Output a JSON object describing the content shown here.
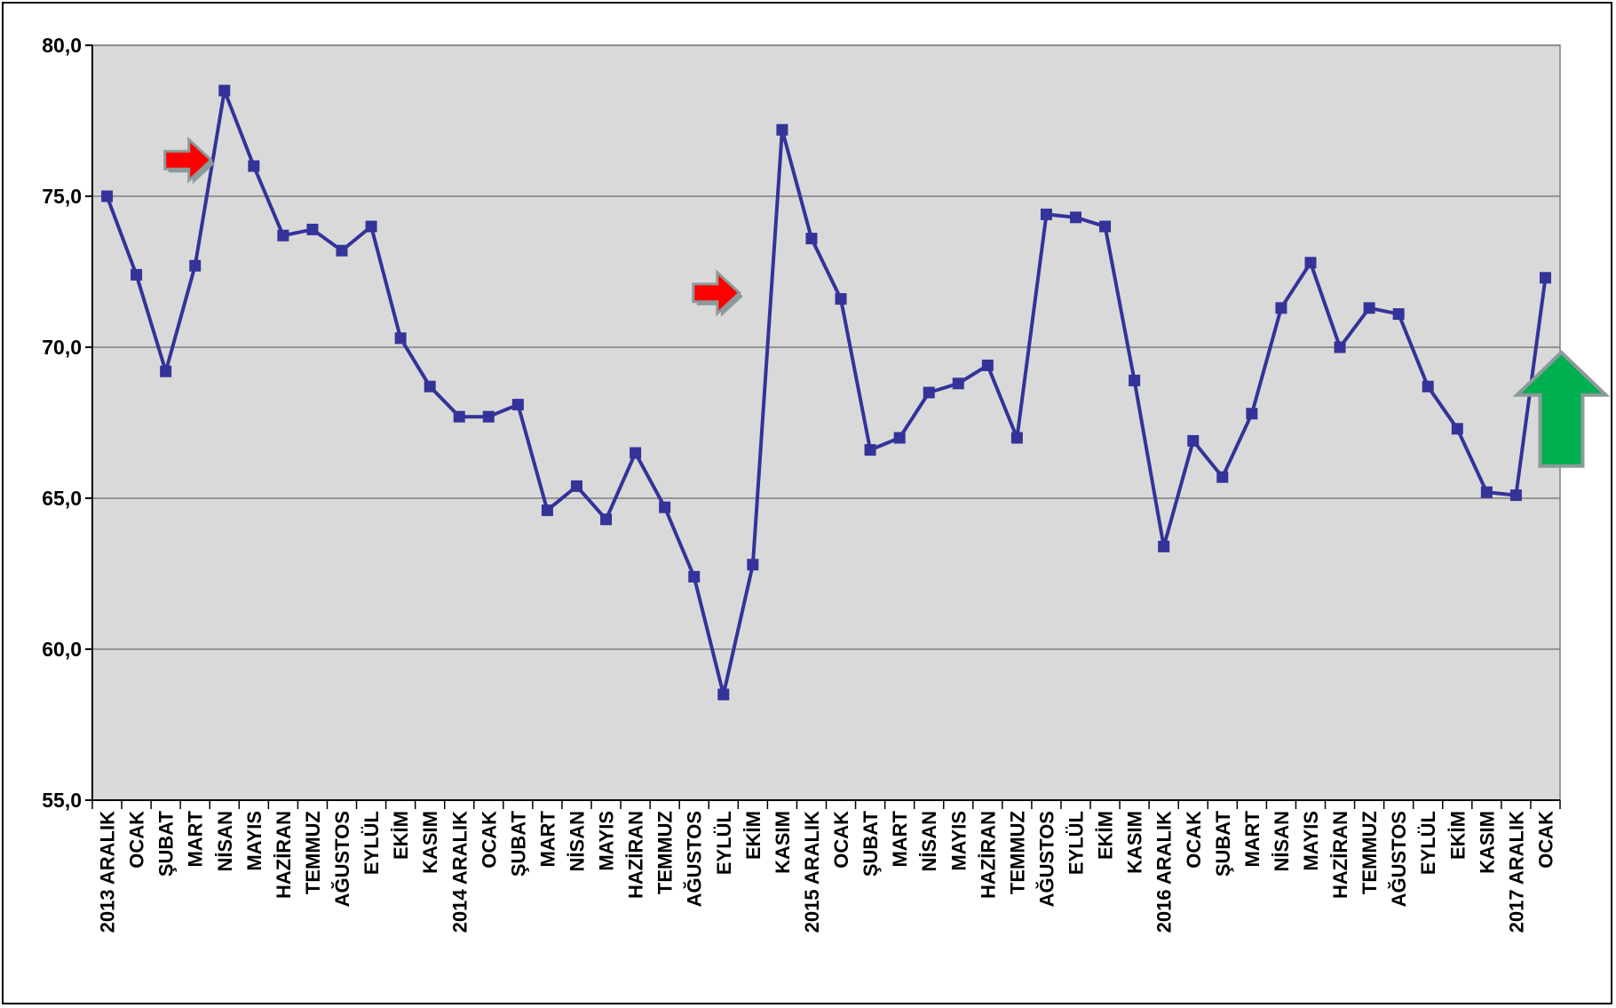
{
  "chart_data": {
    "type": "line",
    "title": "",
    "xlabel": "",
    "ylabel": "",
    "ylim": [
      55.0,
      80.0
    ],
    "yticks": [
      "55,0",
      "60,0",
      "65,0",
      "70,0",
      "75,0",
      "80,0"
    ],
    "ytick_values": [
      55,
      60,
      65,
      70,
      75,
      80
    ],
    "grid": true,
    "legend": "none",
    "colors": {
      "line": "#333399",
      "plot_bg": "#d9d9d9",
      "gridline": "#7f7f7f",
      "arrow_red": "#ff0000",
      "arrow_green": "#00b050",
      "arrow_outline": "#8c9a9a"
    },
    "categories": [
      "2013 ARALIK",
      "OCAK",
      "ŞUBAT",
      "MART",
      "NİSAN",
      "MAYIS",
      "HAZİRAN",
      "TEMMUZ",
      "AĞUSTOS",
      "EYLÜL",
      "EKİM",
      "KASIM",
      "2014 ARALIK",
      "OCAK",
      "ŞUBAT",
      "MART",
      "NİSAN",
      "MAYIS",
      "HAZİRAN",
      "TEMMUZ",
      "AĞUSTOS",
      "EYLÜL",
      "EKİM",
      "KASIM",
      "2015 ARALIK",
      "OCAK",
      "ŞUBAT",
      "MART",
      "NİSAN",
      "MAYIS",
      "HAZİRAN",
      "TEMMUZ",
      "AĞUSTOS",
      "EYLÜL",
      "EKİM",
      "KASIM",
      "2016 ARALIK",
      "OCAK",
      "ŞUBAT",
      "MART",
      "NİSAN",
      "MAYIS",
      "HAZİRAN",
      "TEMMUZ",
      "AĞUSTOS",
      "EYLÜL",
      "EKİM",
      "KASIM",
      "2017 ARALIK",
      "OCAK"
    ],
    "series": [
      {
        "values": [
          75.0,
          72.4,
          69.2,
          72.7,
          78.5,
          76.0,
          73.7,
          73.9,
          73.2,
          74.0,
          70.3,
          68.7,
          67.7,
          67.7,
          68.1,
          64.6,
          65.4,
          64.3,
          66.5,
          64.7,
          62.4,
          58.5,
          62.8,
          77.2,
          73.6,
          71.6,
          66.6,
          67.0,
          68.5,
          68.8,
          69.4,
          67.0,
          74.4,
          74.3,
          74.0,
          68.9,
          63.4,
          66.9,
          65.7,
          67.8,
          71.3,
          72.8,
          70.0,
          71.3,
          71.1,
          68.7,
          67.3,
          65.2,
          65.1,
          72.3
        ]
      }
    ],
    "annotations": [
      {
        "type": "arrow-right",
        "color": "red",
        "at_category": 3,
        "y": 76.2
      },
      {
        "type": "arrow-right",
        "color": "red",
        "at_category": 21,
        "y": 71.8
      },
      {
        "type": "arrow-up",
        "color": "green",
        "at_category": 49,
        "y": 69.3
      }
    ]
  }
}
